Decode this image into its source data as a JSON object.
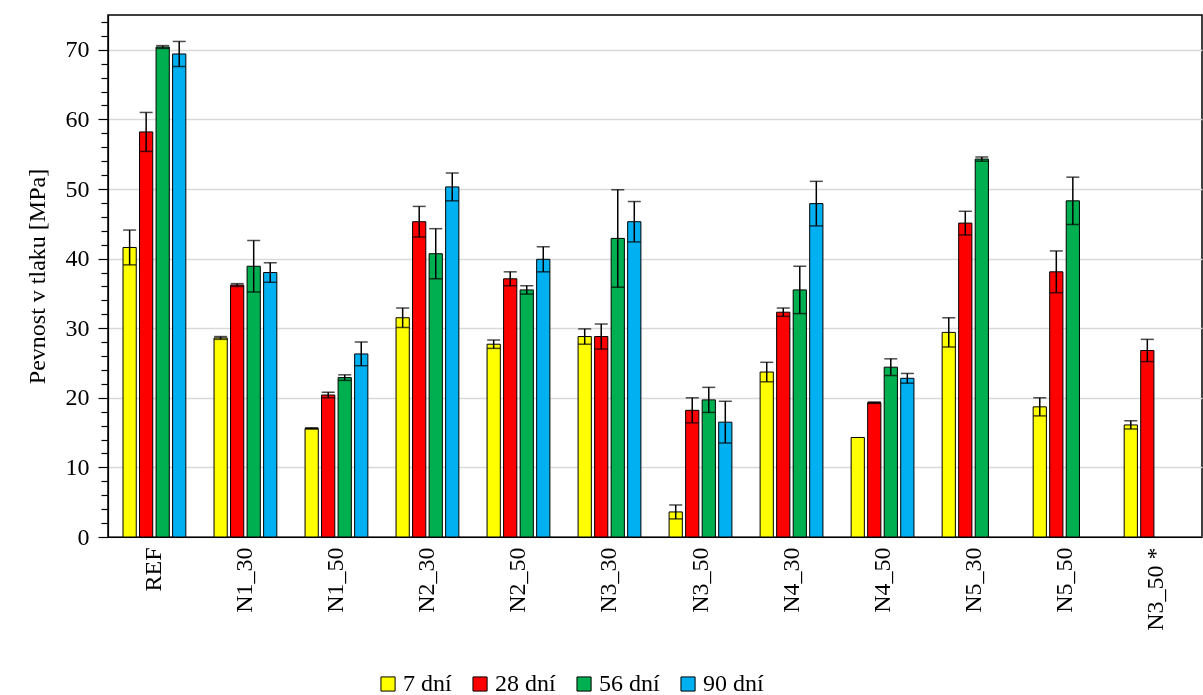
{
  "chart_data": {
    "type": "bar",
    "ylabel": "Pevnost v tlaku [MPa]",
    "categories": [
      "REF",
      "N1_30",
      "N1_50",
      "N2_30",
      "N2_50",
      "N3_30",
      "N3_50",
      "N4_30",
      "N4_50",
      "N5_30",
      "N5_50",
      "N3_50 *"
    ],
    "series": [
      {
        "name": "7 dní",
        "color": "#ffff00",
        "values": [
          41.6,
          28.6,
          15.6,
          31.5,
          27.7,
          28.8,
          3.6,
          23.7,
          14.3,
          29.4,
          18.7,
          16.1
        ],
        "errors": [
          2.5,
          0.2,
          0.1,
          1.4,
          0.6,
          1.1,
          1.0,
          1.4,
          null,
          2.1,
          1.3,
          0.6
        ]
      },
      {
        "name": "28 dní",
        "color": "#ff0000",
        "values": [
          58.2,
          36.2,
          20.4,
          45.3,
          37.1,
          28.8,
          18.2,
          32.3,
          19.3,
          45.1,
          38.1,
          26.8
        ],
        "errors": [
          2.8,
          0.2,
          0.4,
          2.2,
          1.0,
          1.8,
          1.8,
          0.6,
          0.1,
          1.7,
          3.0,
          1.6
        ]
      },
      {
        "name": "56 dní",
        "color": "#00b050",
        "values": [
          70.4,
          38.9,
          22.9,
          40.7,
          35.5,
          42.9,
          19.7,
          35.5,
          24.4,
          54.3,
          48.3,
          null
        ],
        "errors": [
          0.2,
          3.7,
          0.4,
          3.6,
          0.6,
          7.0,
          1.8,
          3.4,
          1.2,
          0.3,
          3.4,
          null
        ]
      },
      {
        "name": "90 dní",
        "color": "#00b0f0",
        "values": [
          69.4,
          38.0,
          26.3,
          50.3,
          39.9,
          45.3,
          16.5,
          47.9,
          22.8,
          null,
          null,
          null
        ],
        "errors": [
          1.8,
          1.4,
          1.7,
          2.0,
          1.8,
          2.9,
          3.0,
          3.2,
          0.7,
          null,
          null,
          null
        ]
      }
    ],
    "ylim": [
      0,
      75
    ],
    "yticks": [
      0,
      {
        "value": 2,
        "label": null
      },
      {
        "value": 4,
        "label": null
      },
      {
        "value": 6,
        "label": null
      },
      {
        "value": 8,
        "label": null
      },
      10,
      {
        "value": 12,
        "label": null
      },
      {
        "value": 14,
        "label": null
      },
      {
        "value": 16,
        "label": null
      },
      {
        "value": 18,
        "label": null
      },
      20,
      {
        "value": 22,
        "label": null
      },
      {
        "value": 24,
        "label": null
      },
      {
        "value": 26,
        "label": null
      },
      {
        "value": 28,
        "label": null
      },
      30,
      {
        "value": 32,
        "label": null
      },
      {
        "value": 34,
        "label": null
      },
      {
        "value": 36,
        "label": null
      },
      {
        "value": 38,
        "label": null
      },
      40,
      {
        "value": 42,
        "label": null
      },
      {
        "value": 44,
        "label": null
      },
      {
        "value": 46,
        "label": null
      },
      {
        "value": 48,
        "label": null
      },
      50,
      {
        "value": 52,
        "label": null
      },
      {
        "value": 54,
        "label": null
      },
      {
        "value": 56,
        "label": null
      },
      {
        "value": 58,
        "label": null
      },
      60,
      {
        "value": 62,
        "label": null
      },
      {
        "value": 64,
        "label": null
      },
      {
        "value": 66,
        "label": null
      },
      {
        "value": 68,
        "label": null
      },
      70,
      {
        "value": 72,
        "label": null
      },
      {
        "value": 74,
        "label": null
      }
    ],
    "grid": "y",
    "legend": "bottom"
  }
}
